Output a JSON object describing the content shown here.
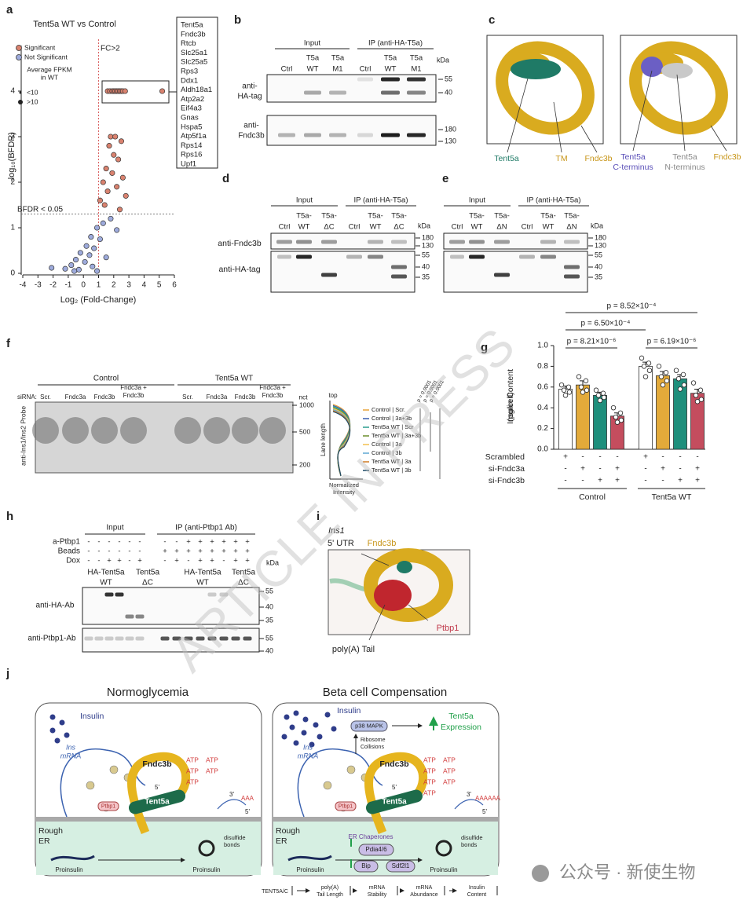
{
  "watermark": "ARTICLE IN PRESS",
  "footer": "公众号 · 新使生物",
  "panels": {
    "a": {
      "label": "a",
      "title": "Tent5a WT vs Control",
      "series": [
        {
          "name": "Significant",
          "color": "#d9826f",
          "x": [
            1.6,
            1.75,
            1.9,
            2.0,
            2.1,
            2.2,
            2.3,
            2.4,
            2.5,
            2.6,
            2.75,
            5.2,
            1.8,
            2.1,
            2.5,
            1.7,
            2.0,
            2.3,
            1.5,
            1.9,
            2.6,
            1.3,
            2.2,
            1.6,
            2.8,
            1.1,
            1.4,
            2.4
          ],
          "y": [
            4,
            4,
            4,
            4,
            4,
            4,
            4,
            4,
            4,
            4,
            4,
            4,
            3.0,
            3.0,
            2.9,
            2.8,
            2.6,
            2.5,
            2.3,
            2.2,
            2.1,
            2.0,
            1.9,
            1.8,
            1.7,
            1.6,
            1.5,
            1.4
          ]
        },
        {
          "name": "Not Significant",
          "color": "#9eabdc",
          "x": [
            1.8,
            1.3,
            0.9,
            2.2,
            0.5,
            1.1,
            0.2,
            0.7,
            -0.2,
            0.4,
            1.5,
            -0.5,
            0.1,
            -0.8,
            0.6,
            -1.2,
            -0.3,
            0.9,
            -2.1,
            -0.6
          ],
          "y": [
            1.2,
            1.1,
            1.0,
            0.95,
            0.8,
            0.75,
            0.6,
            0.55,
            0.45,
            0.4,
            0.35,
            0.3,
            0.25,
            0.18,
            0.15,
            0.1,
            0.08,
            0.05,
            0.12,
            0.05
          ]
        }
      ],
      "size_legend_title": [
        "Average FPKM",
        "in WT"
      ],
      "size_legend": [
        "<10",
        ">10"
      ],
      "fc_label": "FC>2",
      "fc_threshold": 1,
      "bfdr_label": "BFDR < 0.05",
      "bfdr_threshold": 1.3,
      "x_label": "Log₂ (Fold-Change)",
      "y_label": "-log₁₀(BFDR)",
      "xlim": [
        -4,
        6
      ],
      "xticks": [
        -4,
        -3,
        -2,
        -1,
        0,
        1,
        2,
        3,
        4,
        5,
        6
      ],
      "ylim": [
        0,
        5
      ],
      "yticks": [
        0,
        1,
        2,
        3,
        4
      ],
      "genes": [
        "Tent5a",
        "Fndc3b",
        "Rtcb",
        "Slc25a1",
        "Slc25a5",
        "Rps3",
        "Ddx1",
        "Aldh18a1",
        "Atp2a2",
        "Eif4a3",
        "Gnas",
        "Hspa5",
        "Atp5f1a",
        "Rps14",
        "Rps16",
        "Upf1"
      ]
    },
    "b": {
      "label": "b",
      "groups": [
        "Input",
        "IP (anti-HA-T5a)"
      ],
      "lanes": [
        [
          "Ctrl"
        ],
        [
          "T5a",
          "WT"
        ],
        [
          "T5a",
          "M1"
        ],
        [
          "Ctrl"
        ],
        [
          "T5a",
          "WT"
        ],
        [
          "T5a",
          "M1"
        ]
      ],
      "kda": "kDa",
      "blots": [
        {
          "antibody": [
            "anti-",
            "HA-tag"
          ],
          "markers": [
            55,
            40
          ]
        },
        {
          "antibody": [
            "anti-",
            "Fndc3b"
          ],
          "markers": [
            180,
            130
          ]
        }
      ]
    },
    "c": {
      "label": "c",
      "tent5a": "Tent5a",
      "tm": "TM",
      "fndc3b": "Fndc3b",
      "cterm": [
        "Tent5a",
        "C-terminus"
      ],
      "nterm": [
        "Tent5a",
        "N-terminus"
      ],
      "fndc3b_right": "Fndc3b"
    },
    "d": {
      "label": "d",
      "groups": [
        "Input",
        "IP (anti-HA-T5a)"
      ],
      "lanes": [
        [
          "Ctrl"
        ],
        [
          "T5a-",
          "WT"
        ],
        [
          "T5a-",
          "ΔC"
        ],
        [
          "Ctrl"
        ],
        [
          "T5a-",
          "WT"
        ],
        [
          "T5a-",
          "ΔC"
        ]
      ],
      "kda": "kDa",
      "blots": [
        {
          "antibody": "anti-Fndc3b",
          "markers": [
            180,
            130
          ]
        },
        {
          "antibody": "anti-HA-tag",
          "markers": [
            55,
            40,
            35
          ]
        }
      ]
    },
    "e": {
      "label": "e",
      "groups": [
        "Input",
        "IP (anti-HA-T5a)"
      ],
      "lanes": [
        [
          "Ctrl"
        ],
        [
          "T5a-",
          "WT"
        ],
        [
          "T5a-",
          "ΔN"
        ],
        [
          "Ctrl"
        ],
        [
          "T5a-",
          "WT"
        ],
        [
          "T5a-",
          "ΔN"
        ]
      ],
      "kda": "kDa",
      "blots": [
        {
          "markers": [
            180,
            130
          ]
        },
        {
          "markers": [
            55,
            40,
            35
          ]
        }
      ]
    },
    "f": {
      "label": "f",
      "groups": [
        "Control",
        "Tent5a WT"
      ],
      "sirna": "siRNA:",
      "lanes": [
        [
          "Scr."
        ],
        [
          "Fndc3a"
        ],
        [
          "Fndc3b"
        ],
        [
          "Fndc3a +",
          "Fndc3b"
        ],
        [
          "Scr."
        ],
        [
          "Fndc3a"
        ],
        [
          "Fndc3b"
        ],
        [
          "Fndc3a +",
          "Fndc3b"
        ]
      ],
      "size_unit": "nct",
      "sizes": [
        1000,
        500,
        200
      ],
      "y_label": "anti-Ins1/Ins2 Probe",
      "profile": {
        "top": "top",
        "y_label": "Lane length",
        "x_label": [
          "Normalized",
          "Intensity"
        ],
        "series": [
          {
            "name": "Control | Scr.",
            "color": "#e8a43a"
          },
          {
            "name": "Control | 3a+3b",
            "color": "#3b5fb0"
          },
          {
            "name": "Tent5a WT | Scr",
            "color": "#2a9d8f"
          },
          {
            "name": "Tent5a WT | 3a+3b",
            "color": "#6c8f2c"
          },
          {
            "name": "Control | 3a",
            "color": "#f2c14e"
          },
          {
            "name": "Control | 3b",
            "color": "#5fa8d3"
          },
          {
            "name": "Tent5a WT | 3a",
            "color": "#d17a22"
          },
          {
            "name": "Tent5a WT | 3b",
            "color": "#1b4965"
          }
        ],
        "pvalues": [
          "p = 0.0001",
          "p = 0.0001",
          "p = 0.0001"
        ]
      }
    },
    "g": {
      "label": "g",
      "type": "bar",
      "y_label": [
        "Insulin Content",
        "(pg/cell)"
      ],
      "ylim": [
        0,
        1
      ],
      "yticks": [
        {
          "value": 0,
          "label": "0.0"
        },
        0.2,
        0.4,
        0.6,
        0.8,
        {
          "value": 1,
          "label": "1.0"
        }
      ],
      "values": [
        0.58,
        0.62,
        0.52,
        0.32,
        0.8,
        0.71,
        0.68,
        0.54
      ],
      "errors": [
        0.03,
        0.04,
        0.03,
        0.03,
        0.04,
        0.04,
        0.04,
        0.04
      ],
      "points": [
        [
          0.62,
          0.6,
          0.57,
          0.55,
          0.52
        ],
        [
          0.7,
          0.66,
          0.6,
          0.57,
          0.55
        ],
        [
          0.57,
          0.54,
          0.52,
          0.5,
          0.47
        ],
        [
          0.4,
          0.35,
          0.31,
          0.28,
          0.26
        ],
        [
          0.88,
          0.83,
          0.8,
          0.76,
          0.7
        ],
        [
          0.8,
          0.74,
          0.7,
          0.66,
          0.62
        ],
        [
          0.76,
          0.72,
          0.68,
          0.62,
          0.58
        ],
        [
          0.64,
          0.57,
          0.52,
          0.48,
          0.46
        ]
      ],
      "colors": [
        "#ffffff",
        "#e3aa3a",
        "#1f8f7c",
        "#c44d5e",
        "#ffffff",
        "#e3aa3a",
        "#1f8f7c",
        "#c44d5e"
      ],
      "comparisons": [
        "p = 8.52×10⁻⁴",
        "p = 6.50×10⁻⁴",
        "p = 8.21×10⁻⁶",
        "p = 6.19×10⁻⁶"
      ],
      "design": [
        {
          "name": "Scrambled",
          "signs": [
            "+",
            "-",
            "-",
            "-",
            "+",
            "-",
            "-",
            "-"
          ]
        },
        {
          "name": "si-Fndc3a",
          "signs": [
            "-",
            "+",
            "-",
            "+",
            "-",
            "+",
            "-",
            "+"
          ]
        },
        {
          "name": "si-Fndc3b",
          "signs": [
            "-",
            "-",
            "+",
            "+",
            "-",
            "-",
            "+",
            "+"
          ]
        }
      ],
      "groups": [
        "Control",
        "Tent5a WT"
      ]
    },
    "h": {
      "label": "h",
      "groups": [
        "Input",
        "IP (anti-Ptbp1 Ab)"
      ],
      "conditions": [
        {
          "name": "a-Ptbp1",
          "signs": [
            "-",
            "-",
            "-",
            "-",
            "-",
            "-",
            "-",
            "-",
            "+",
            "+",
            "+",
            "+",
            "+",
            "+"
          ]
        },
        {
          "name": "Beads",
          "signs": [
            "-",
            "-",
            "-",
            "-",
            "-",
            "-",
            "+",
            "+",
            "+",
            "+",
            "+",
            "+",
            "+",
            "+"
          ]
        },
        {
          "name": "Dox",
          "signs": [
            "-",
            "-",
            "+",
            "+",
            "-",
            "+",
            "-",
            "+",
            "-",
            "+",
            "+",
            "-",
            "+",
            "+"
          ]
        }
      ],
      "lanes": [
        [
          "HA-Tent5a",
          "WT"
        ],
        [
          "Tent5a",
          "ΔC"
        ],
        [
          "HA-Tent5a",
          "WT"
        ],
        [
          "Tent5a",
          "ΔC"
        ]
      ],
      "kda": "kDa",
      "blots": [
        {
          "antibody": "anti-HA-Ab",
          "markers": [
            55,
            40,
            35
          ]
        },
        {
          "antibody": "anti-Ptbp1-Ab",
          "markers": [
            55,
            40
          ]
        }
      ]
    },
    "i": {
      "label": "i",
      "gene": "Ins1",
      "utr": "5' UTR",
      "fndc3b": "Fndc3b",
      "ptbp1": "Ptbp1",
      "polya": "poly(A) Tail"
    },
    "j": {
      "label": "j",
      "left": {
        "title": "Normoglycemia",
        "insulin": "Insulin",
        "mrna": [
          "Ins",
          "mRNA"
        ],
        "fndc3b": "Fndc3b",
        "tent5a": "Tent5a",
        "ptbp1": "Ptbp1",
        "atp": [
          "ATP",
          "ATP",
          "ATP",
          "ATP",
          "ATP"
        ],
        "five": "5'",
        "three": "3'",
        "five2": "5'",
        "tail": "AAA",
        "er": [
          "Rough",
          "ER"
        ],
        "disulfide": [
          "disulfide",
          "bonds"
        ],
        "proinsulin_a": "Proinsulin",
        "proinsulin_b": "Proinsulin"
      },
      "right": {
        "title": "Beta cell Compensation",
        "insulin": "Insulin",
        "p38": "p38 MAPK",
        "expression": [
          "Tent5a",
          "Expression"
        ],
        "collisions": [
          "Ribosome",
          "Collisions"
        ],
        "mrna": [
          "Ins",
          "mRNA"
        ],
        "fndc3b": "Fndc3b",
        "tent5a": "Tent5a",
        "ptbp1": "Ptbp1",
        "atp": [
          "ATP",
          "ATP",
          "ATP",
          "ATP",
          "ATP",
          "ATP",
          "ATP"
        ],
        "five": "5'",
        "three": "3'",
        "five2": "5'",
        "tail": "AAAAAA",
        "er": [
          "Rough",
          "ER"
        ],
        "chaperones": "ER Chaperones",
        "pdia": "Pdia4/6",
        "bip": "Bip",
        "sdf": "Sdf2l1",
        "disulfide": [
          "disulfide",
          "bonds"
        ],
        "proinsulin_a": "Proinsulin",
        "proinsulin_b": "Proinsulin"
      },
      "flow": [
        "TENT5A/C",
        [
          "poly(A)",
          "Tail Length"
        ],
        [
          "mRNA",
          "Stability"
        ],
        [
          "mRNA",
          "Abundance"
        ],
        [
          "Insulin",
          "Content"
        ]
      ]
    }
  }
}
